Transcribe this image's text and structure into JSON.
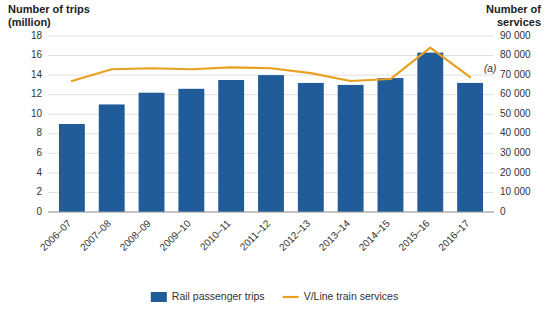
{
  "chart_data": {
    "type": "bar",
    "categories": [
      "2006–07",
      "2007–08",
      "2008–09",
      "2009–10",
      "2010–11",
      "2011–12",
      "2012–13",
      "2013–14",
      "2014–15",
      "2015–16",
      "2016–17"
    ],
    "series": [
      {
        "name": "Rail passenger trips",
        "type": "bar",
        "color": "#1F5C99",
        "values": [
          9.0,
          11.0,
          12.2,
          12.6,
          13.5,
          14.0,
          13.2,
          13.0,
          13.7,
          16.3,
          13.2
        ]
      },
      {
        "name": "V/Line train services",
        "type": "line",
        "color": "#E8A020",
        "axis": "y2",
        "values": [
          67000,
          73000,
          73500,
          73000,
          74000,
          73500,
          71000,
          67000,
          68000,
          84000,
          69000
        ]
      }
    ],
    "y_label": [
      "Number of trips",
      "(million)"
    ],
    "y2_label": [
      "Number of",
      "services"
    ],
    "ylim": [
      0,
      18
    ],
    "yticks": [
      0,
      2,
      4,
      6,
      8,
      10,
      12,
      14,
      16,
      18
    ],
    "y2lim": [
      0,
      90000
    ],
    "y2ticks": [
      0,
      {
        "value": 10000,
        "label": "10 000"
      },
      {
        "value": 20000,
        "label": "20 000"
      },
      {
        "value": 30000,
        "label": "30 000"
      },
      {
        "value": 40000,
        "label": "40 000"
      },
      {
        "value": 50000,
        "label": "50 000"
      },
      {
        "value": 60000,
        "label": "60 000"
      },
      {
        "value": 70000,
        "label": "70 000"
      },
      {
        "value": 80000,
        "label": "80 000"
      },
      {
        "value": 90000,
        "label": "90 000"
      }
    ],
    "annotations": [
      {
        "text": "(a)",
        "category": "2016–17",
        "y": 14.2
      }
    ],
    "grid": true,
    "legend": "bottom"
  }
}
